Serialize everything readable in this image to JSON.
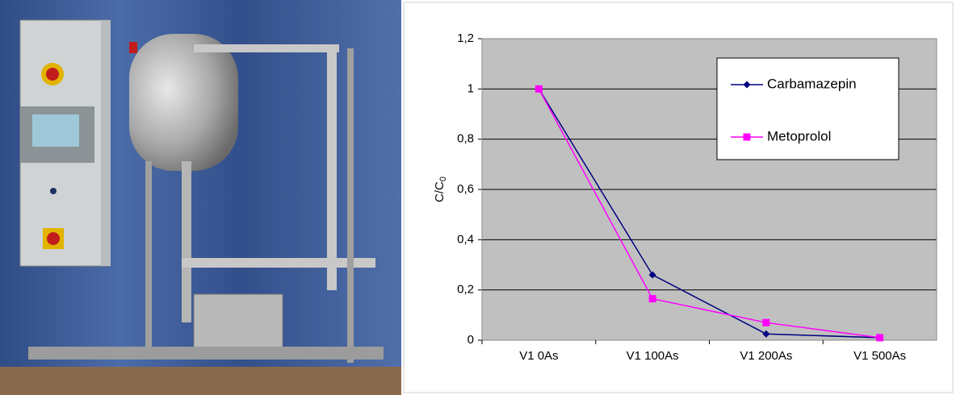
{
  "chart_data": {
    "type": "line",
    "y_label": "C/C",
    "y_label_subscript": "0",
    "categories": [
      "V1 0As",
      "V1 100As",
      "V1 200As",
      "V1 500As"
    ],
    "series": [
      {
        "name": "Carbamazepin",
        "color": "#000080",
        "marker": "diamond",
        "values": [
          1,
          0.26,
          0.025,
          0.01
        ]
      },
      {
        "name": "Metoprolol",
        "color": "#ff00ff",
        "marker": "square",
        "values": [
          1,
          0.165,
          0.07,
          0.01
        ]
      }
    ],
    "ylim": [
      0,
      1.2
    ],
    "yticks": [
      0,
      {
        "value": 0.2,
        "label": "0,2"
      },
      {
        "value": 0.4,
        "label": "0,4"
      },
      {
        "value": 0.6,
        "label": "0,6"
      },
      {
        "value": 0.8,
        "label": "0,8"
      },
      1,
      {
        "value": 1.2,
        "label": "1,2"
      }
    ],
    "grid": true,
    "legend": "upper right",
    "plot_background": "#c0c0c0"
  }
}
